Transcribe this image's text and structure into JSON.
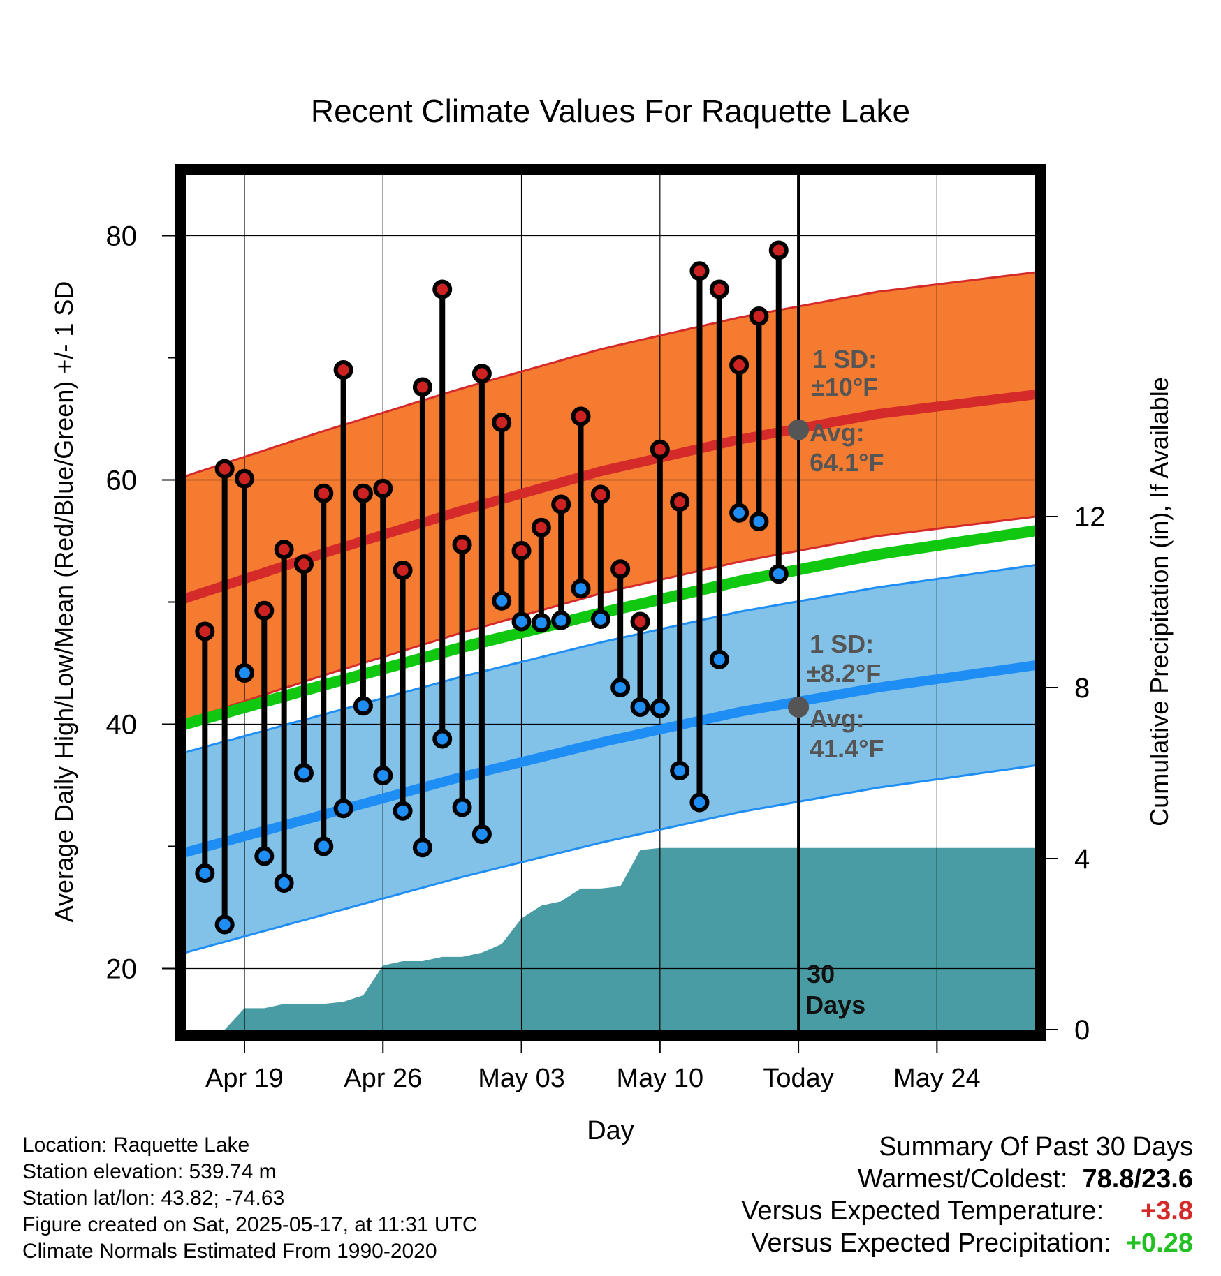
{
  "chart_data": {
    "type": "line",
    "title": "Recent Climate Values For Raquette Lake",
    "xlabel": "Day",
    "ylabel": "Average Daily High/Low/Mean (Red/Blue/Green) +/- 1 SD",
    "y2label": "Cumulative Precipitation (in), If Available",
    "xlim": [
      "2025-04-16",
      "2025-05-29"
    ],
    "ylim": [
      15,
      85
    ],
    "y2lim": [
      0,
      20
    ],
    "yticks": [
      80,
      60,
      40,
      20
    ],
    "y2ticks": [
      12,
      8,
      4,
      0
    ],
    "xticks": [
      {
        "date": "2025-04-19",
        "label": "Apr 19"
      },
      {
        "date": "2025-04-26",
        "label": "Apr 26"
      },
      {
        "date": "2025-05-03",
        "label": "May 03"
      },
      {
        "date": "2025-05-10",
        "label": "May 10"
      },
      {
        "date": "2025-05-17",
        "label": "Today"
      },
      {
        "date": "2025-05-24",
        "label": "May 24"
      }
    ],
    "grid": true,
    "colors": {
      "high_band": "#f47b30",
      "high_line": "#d42a2a",
      "low_band": "#82c2e8",
      "low_line": "#1e8ef5",
      "mean_line": "#10c810",
      "precip": "#4a9ca4",
      "high_point": "#cc2222",
      "low_point": "#1e8ef5",
      "marker": "#555555"
    },
    "normals": {
      "x": [
        "2025-04-16",
        "2025-04-23",
        "2025-04-30",
        "2025-05-07",
        "2025-05-14",
        "2025-05-21",
        "2025-05-28"
      ],
      "avg_high": [
        50.3,
        54.0,
        57.5,
        60.7,
        63.3,
        65.4,
        66.8
      ],
      "avg_low": [
        29.5,
        32.6,
        35.7,
        38.5,
        41.0,
        43.0,
        44.6
      ],
      "avg_mean": [
        40.0,
        43.2,
        46.3,
        49.1,
        51.7,
        53.9,
        55.6
      ],
      "high_sd": 10,
      "low_sd": 8.2
    },
    "observed": {
      "x": [
        "2025-04-17",
        "2025-04-18",
        "2025-04-19",
        "2025-04-20",
        "2025-04-21",
        "2025-04-22",
        "2025-04-23",
        "2025-04-24",
        "2025-04-25",
        "2025-04-26",
        "2025-04-27",
        "2025-04-28",
        "2025-04-29",
        "2025-04-30",
        "2025-05-01",
        "2025-05-02",
        "2025-05-03",
        "2025-05-04",
        "2025-05-05",
        "2025-05-06",
        "2025-05-07",
        "2025-05-08",
        "2025-05-09",
        "2025-05-10",
        "2025-05-11",
        "2025-05-12",
        "2025-05-13",
        "2025-05-14",
        "2025-05-15",
        "2025-05-16"
      ],
      "high": [
        47.6,
        60.9,
        60.1,
        49.3,
        54.3,
        53.1,
        58.9,
        69.0,
        58.9,
        59.3,
        52.6,
        67.6,
        75.6,
        54.7,
        68.7,
        64.7,
        54.2,
        56.1,
        58.0,
        65.2,
        58.8,
        52.7,
        48.4,
        62.5,
        58.2,
        77.1,
        75.6,
        69.4,
        73.4,
        78.8
      ],
      "low": [
        27.8,
        23.6,
        44.2,
        29.2,
        27.0,
        36.0,
        30.0,
        33.1,
        41.5,
        35.8,
        32.9,
        29.9,
        38.8,
        33.2,
        31.0,
        50.1,
        48.4,
        48.3,
        48.5,
        51.1,
        48.6,
        43.0,
        41.4,
        41.3,
        36.2,
        33.6,
        45.3,
        57.3,
        56.6,
        52.3
      ]
    },
    "precip": {
      "x": [
        "2025-04-17",
        "2025-04-18",
        "2025-04-19",
        "2025-04-20",
        "2025-04-21",
        "2025-04-22",
        "2025-04-23",
        "2025-04-24",
        "2025-04-25",
        "2025-04-26",
        "2025-04-27",
        "2025-04-28",
        "2025-04-29",
        "2025-04-30",
        "2025-05-01",
        "2025-05-02",
        "2025-05-03",
        "2025-05-04",
        "2025-05-05",
        "2025-05-06",
        "2025-05-07",
        "2025-05-08",
        "2025-05-09",
        "2025-05-10",
        "2025-05-11",
        "2025-05-12",
        "2025-05-13",
        "2025-05-14",
        "2025-05-15",
        "2025-05-16",
        "2025-05-17",
        "2025-05-28"
      ],
      "values": [
        0,
        0,
        0.5,
        0.5,
        0.6,
        0.6,
        0.6,
        0.65,
        0.8,
        1.5,
        1.6,
        1.6,
        1.7,
        1.7,
        1.8,
        2.0,
        2.6,
        2.9,
        3.0,
        3.3,
        3.3,
        3.35,
        4.2,
        4.25,
        4.25,
        4.25,
        4.25,
        4.25,
        4.25,
        4.25,
        4.25,
        4.25
      ]
    },
    "annotations": {
      "high_sd_label": "1 SD:",
      "high_sd_value": "±10°F",
      "high_avg_label": "Avg:",
      "high_avg_value": "64.1°F",
      "low_sd_label": "1 SD:",
      "low_sd_value": "±8.2°F",
      "low_avg_label": "Avg:",
      "low_avg_value": "41.4°F",
      "today_high_avg": 64.1,
      "today_low_avg": 41.4,
      "period_line1": "30",
      "period_line2": "Days"
    }
  },
  "info": {
    "location": "Location: Raquette Lake",
    "elevation": "Station elevation: 539.74 m",
    "latlon": "Station lat/lon: 43.82; -74.63",
    "created": "Figure created on Sat, 2025-05-17, at 11:31 UTC",
    "normals": "Climate Normals Estimated From 1990-2020"
  },
  "summary": {
    "title": "Summary Of Past 30 Days",
    "warm_cold_label": "Warmest/Coldest:",
    "warm_cold_value": "78.8/23.6",
    "temp_label": "Versus Expected Temperature:",
    "temp_value": "+3.8",
    "precip_label": "Versus Expected Precipitation:",
    "precip_value": "+0.28"
  }
}
